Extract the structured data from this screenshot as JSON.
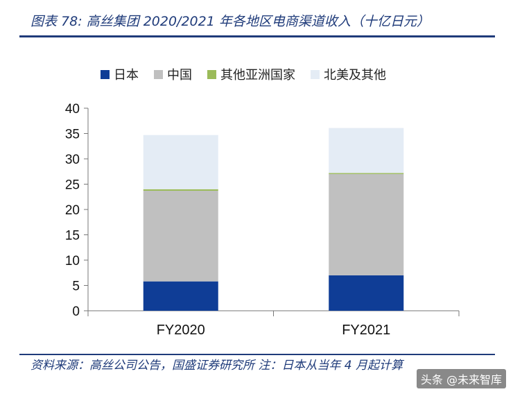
{
  "header": {
    "title": "图表 78: 高丝集团 2020/2021 年各地区电商渠道收入（十亿日元）"
  },
  "footer": {
    "source": "资料来源：高丝公司公告，国盛证券研究所 注：日本从当年 4 月起计算",
    "watermark": "头条 @未来智库"
  },
  "colors": {
    "japan": "#0f3d96",
    "china": "#c0c0c0",
    "other_asia": "#9bbb59",
    "na_other": "#e4ecf5"
  },
  "chart_data": {
    "type": "bar",
    "stacked": true,
    "categories": [
      "FY2020",
      "FY2021"
    ],
    "series": [
      {
        "name": "日本",
        "values": [
          5.8,
          7.0
        ]
      },
      {
        "name": "中国",
        "values": [
          17.9,
          20.0
        ]
      },
      {
        "name": "其他亚洲国家",
        "values": [
          0.3,
          0.2
        ]
      },
      {
        "name": "北美及其他",
        "values": [
          10.7,
          8.9
        ]
      }
    ],
    "ylim": [
      0,
      40
    ],
    "yticks": [
      "0",
      "5",
      "10",
      "15",
      "20",
      "25",
      "30",
      "35",
      "40"
    ],
    "legend_position": "top",
    "grid": false
  }
}
